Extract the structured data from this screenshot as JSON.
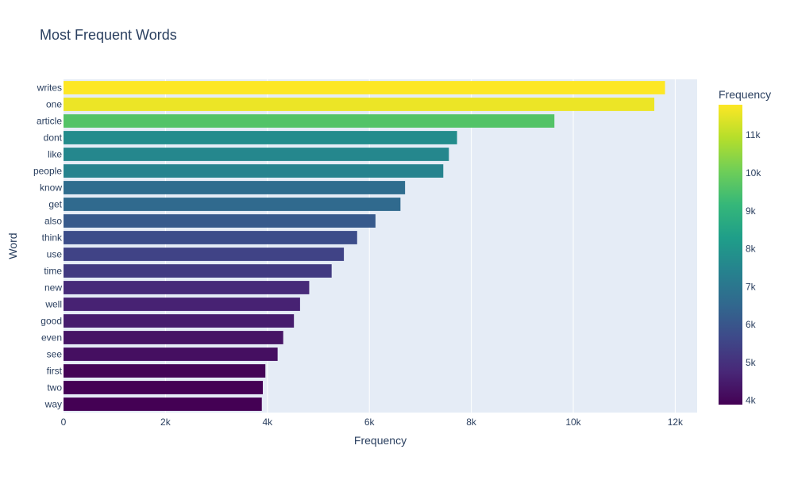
{
  "chart_data": {
    "type": "bar",
    "orientation": "horizontal",
    "title": "Most Frequent Words",
    "xlabel": "Frequency",
    "ylabel": "Word",
    "categories": [
      "writes",
      "one",
      "article",
      "dont",
      "like",
      "people",
      "know",
      "get",
      "also",
      "think",
      "use",
      "time",
      "new",
      "well",
      "good",
      "even",
      "see",
      "first",
      "two",
      "way"
    ],
    "values": [
      11800,
      11590,
      9630,
      7720,
      7560,
      7450,
      6700,
      6610,
      6120,
      5760,
      5500,
      5260,
      4820,
      4640,
      4520,
      4310,
      4200,
      3960,
      3910,
      3890
    ],
    "xlim": [
      0,
      12430
    ],
    "xticks": [
      0,
      2000,
      4000,
      6000,
      8000,
      10000,
      12000
    ],
    "xtick_labels": [
      "0",
      "2k",
      "4k",
      "6k",
      "8k",
      "10k",
      "12k"
    ],
    "grid": true,
    "colorscale": "Viridis",
    "colorbar": {
      "title": "Frequency",
      "range": [
        3890,
        11800
      ],
      "ticks": [
        4000,
        5000,
        6000,
        7000,
        8000,
        9000,
        10000,
        11000
      ],
      "tick_labels": [
        "4k",
        "5k",
        "6k",
        "7k",
        "8k",
        "9k",
        "10k",
        "11k"
      ]
    },
    "colors": {
      "plot_background": "#e5ecf6",
      "grid": "#ffffff",
      "text": "#2a3f5f"
    }
  }
}
